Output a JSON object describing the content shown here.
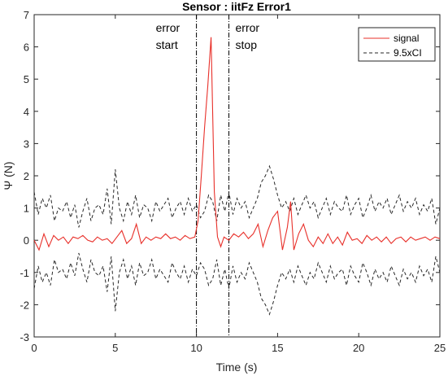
{
  "chart_data": {
    "type": "line",
    "title": "Sensor : iitFz Error1",
    "xlabel": "Time (s)",
    "ylabel": "Ψ (N)",
    "xlim": [
      0,
      25
    ],
    "ylim": [
      -3,
      7
    ],
    "xticks": [
      "0",
      "5",
      "10",
      "15",
      "20",
      "25"
    ],
    "yticks": [
      "-3",
      "-2",
      "-1",
      "0",
      "1",
      "2",
      "3",
      "4",
      "5",
      "6",
      "7"
    ],
    "grid": false,
    "legend_position": "top-right",
    "annotations": [
      {
        "label_line1": "error",
        "label_line2": "start",
        "x": 10.0
      },
      {
        "label_line1": "error",
        "label_line2": "stop",
        "x": 12.0
      }
    ],
    "series": [
      {
        "name": "signal",
        "color": "#e8302a",
        "style": "solid",
        "x": [
          0,
          0.3,
          0.6,
          0.9,
          1.2,
          1.5,
          1.8,
          2.1,
          2.4,
          2.7,
          3.0,
          3.3,
          3.6,
          3.9,
          4.2,
          4.5,
          4.8,
          5.1,
          5.4,
          5.7,
          6.0,
          6.3,
          6.6,
          6.9,
          7.2,
          7.5,
          7.8,
          8.1,
          8.4,
          8.7,
          9.0,
          9.3,
          9.6,
          9.9,
          10.1,
          10.3,
          10.5,
          10.7,
          10.9,
          11.1,
          11.3,
          11.5,
          11.7,
          12.0,
          12.3,
          12.6,
          12.9,
          13.2,
          13.5,
          13.8,
          14.1,
          14.4,
          14.7,
          15.0,
          15.3,
          15.6,
          15.8,
          16.0,
          16.3,
          16.6,
          16.9,
          17.2,
          17.5,
          17.8,
          18.1,
          18.4,
          18.7,
          19.0,
          19.3,
          19.6,
          19.9,
          20.2,
          20.5,
          20.8,
          21.1,
          21.4,
          21.7,
          22.0,
          22.3,
          22.6,
          22.9,
          23.2,
          23.5,
          23.8,
          24.1,
          24.4,
          24.7,
          25.0
        ],
        "values": [
          0.0,
          -0.3,
          0.2,
          -0.2,
          0.15,
          0.0,
          0.1,
          -0.1,
          0.1,
          0.05,
          0.15,
          0.0,
          -0.05,
          0.1,
          0.0,
          0.05,
          -0.1,
          0.1,
          0.3,
          -0.1,
          0.05,
          0.5,
          -0.1,
          0.1,
          0.0,
          0.1,
          0.05,
          0.2,
          0.05,
          0.1,
          0.0,
          0.15,
          0.05,
          0.1,
          0.6,
          2.0,
          3.5,
          4.8,
          6.3,
          1.5,
          0.1,
          -0.2,
          0.1,
          0.0,
          0.2,
          0.1,
          0.25,
          0.05,
          0.2,
          0.5,
          -0.2,
          0.3,
          0.7,
          0.9,
          -0.3,
          0.4,
          1.2,
          -0.3,
          0.2,
          0.5,
          0.0,
          -0.2,
          0.1,
          -0.1,
          0.2,
          -0.1,
          0.1,
          -0.15,
          0.25,
          0.0,
          0.05,
          -0.1,
          0.15,
          0.0,
          0.1,
          -0.05,
          0.1,
          -0.1,
          0.05,
          0.1,
          -0.05,
          0.1,
          0.0,
          0.05,
          0.1,
          0.0,
          0.1,
          0.05
        ]
      },
      {
        "name": "9.5xCI",
        "color": "#262626",
        "style": "dashed",
        "x": [
          0,
          0.25,
          0.5,
          0.75,
          1.0,
          1.25,
          1.5,
          1.75,
          2.0,
          2.25,
          2.5,
          2.75,
          3.0,
          3.25,
          3.5,
          3.75,
          4.0,
          4.25,
          4.5,
          4.75,
          5.0,
          5.25,
          5.5,
          5.75,
          6.0,
          6.25,
          6.5,
          6.75,
          7.0,
          7.25,
          7.5,
          7.75,
          8.0,
          8.25,
          8.5,
          8.75,
          9.0,
          9.25,
          9.5,
          9.75,
          10.0,
          10.25,
          10.5,
          10.75,
          11.0,
          11.25,
          11.5,
          11.75,
          12.0,
          12.25,
          12.5,
          12.75,
          13.0,
          13.25,
          13.5,
          13.75,
          14.0,
          14.25,
          14.5,
          14.75,
          15.0,
          15.25,
          15.5,
          15.75,
          16.0,
          16.25,
          16.5,
          16.75,
          17.0,
          17.25,
          17.5,
          17.75,
          18.0,
          18.25,
          18.5,
          18.75,
          19.0,
          19.25,
          19.5,
          19.75,
          20.0,
          20.25,
          20.5,
          20.75,
          21.0,
          21.25,
          21.5,
          21.75,
          22.0,
          22.25,
          22.5,
          22.75,
          23.0,
          23.25,
          23.5,
          23.75,
          24.0,
          24.25,
          24.5,
          24.75,
          25.0
        ],
        "upper": [
          1.5,
          0.8,
          1.3,
          1.0,
          1.4,
          0.6,
          1.0,
          0.9,
          1.2,
          0.7,
          1.1,
          0.4,
          0.9,
          1.3,
          0.6,
          1.0,
          1.1,
          0.8,
          1.6,
          0.5,
          2.2,
          1.0,
          0.6,
          1.2,
          0.8,
          1.4,
          0.7,
          1.1,
          1.0,
          0.6,
          1.2,
          0.9,
          1.1,
          1.3,
          0.7,
          1.0,
          1.2,
          0.8,
          1.3,
          0.9,
          1.1,
          0.7,
          0.9,
          1.4,
          1.2,
          0.6,
          1.4,
          0.9,
          1.5,
          0.8,
          1.3,
          1.0,
          1.2,
          0.7,
          1.0,
          1.3,
          1.8,
          2.0,
          2.3,
          1.9,
          1.4,
          1.0,
          1.2,
          0.9,
          1.3,
          0.8,
          1.1,
          1.4,
          1.0,
          1.2,
          0.7,
          1.0,
          1.3,
          0.8,
          1.2,
          1.0,
          0.9,
          1.4,
          0.8,
          1.1,
          1.3,
          0.7,
          1.0,
          1.4,
          0.9,
          1.2,
          1.0,
          1.3,
          0.8,
          1.1,
          1.4,
          0.9,
          1.2,
          1.0,
          1.3,
          0.8,
          1.1,
          0.9,
          1.3,
          0.5,
          1.0
        ],
        "lower": [
          -1.5,
          -0.8,
          -1.3,
          -1.0,
          -1.4,
          -0.6,
          -1.0,
          -0.9,
          -1.2,
          -0.7,
          -1.1,
          -0.4,
          -0.9,
          -1.3,
          -0.6,
          -1.0,
          -1.1,
          -0.8,
          -1.6,
          -0.5,
          -2.2,
          -1.0,
          -0.6,
          -1.2,
          -0.8,
          -1.4,
          -0.7,
          -1.1,
          -1.0,
          -0.6,
          -1.2,
          -0.9,
          -1.1,
          -1.3,
          -0.7,
          -1.0,
          -1.2,
          -0.8,
          -1.3,
          -0.9,
          -1.1,
          -0.7,
          -0.9,
          -1.4,
          -1.2,
          -0.6,
          -1.4,
          -0.9,
          -1.5,
          -0.8,
          -1.3,
          -1.0,
          -1.2,
          -0.7,
          -1.0,
          -1.3,
          -1.8,
          -2.0,
          -2.3,
          -1.9,
          -1.4,
          -1.0,
          -1.2,
          -0.9,
          -1.3,
          -0.8,
          -1.1,
          -1.4,
          -1.0,
          -1.2,
          -0.7,
          -1.0,
          -1.3,
          -0.8,
          -1.2,
          -1.0,
          -0.9,
          -1.4,
          -0.8,
          -1.1,
          -1.3,
          -0.7,
          -1.0,
          -1.4,
          -0.9,
          -1.2,
          -1.0,
          -1.3,
          -0.8,
          -1.1,
          -1.4,
          -0.9,
          -1.2,
          -1.0,
          -1.3,
          -0.8,
          -1.1,
          -0.9,
          -1.3,
          -0.5,
          -1.0
        ]
      }
    ]
  }
}
